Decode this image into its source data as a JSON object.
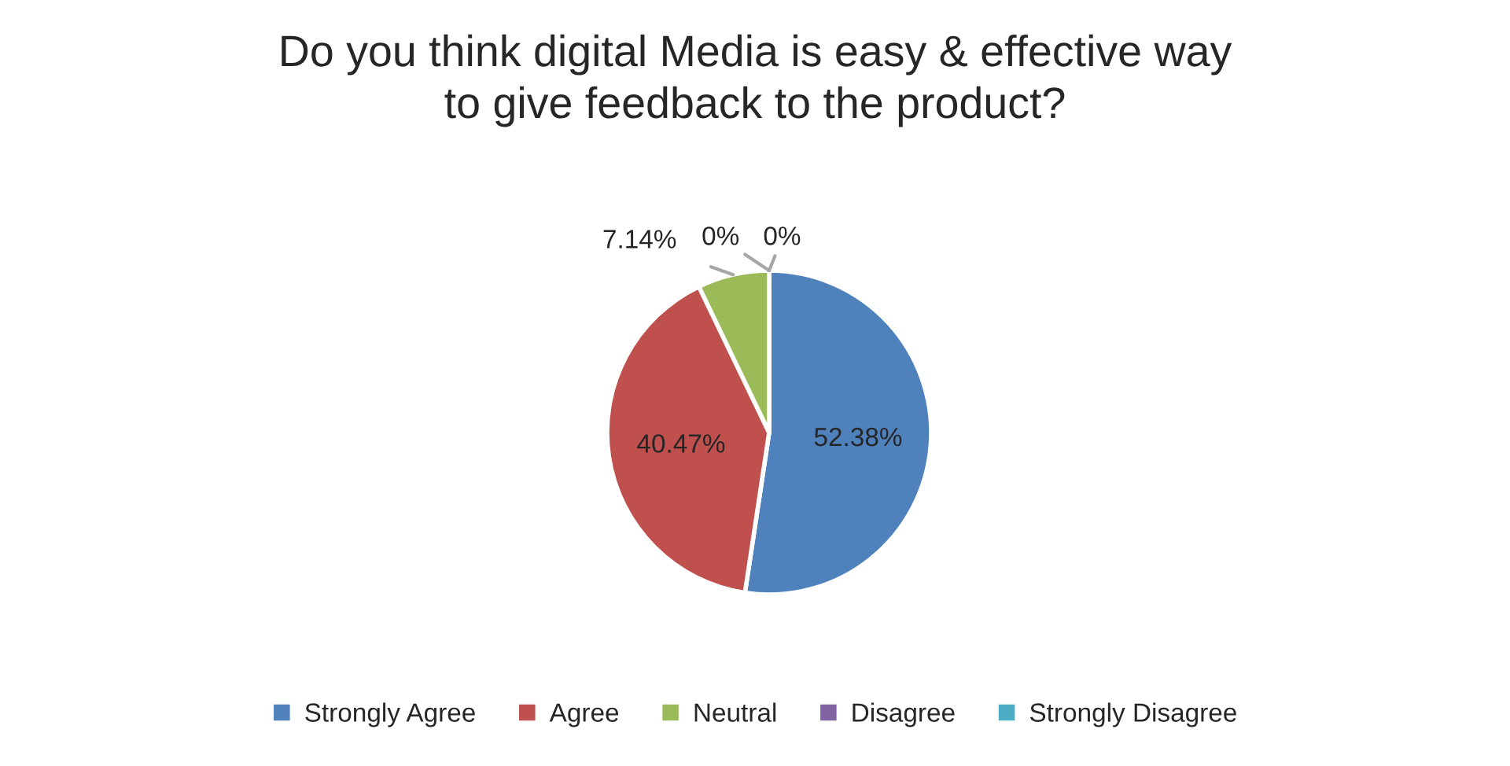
{
  "chart_data": {
    "type": "pie",
    "title": "Do you think digital Media is easy & effective way\nto give feedback to the product?",
    "categories": [
      "Strongly Agree",
      "Agree",
      "Neutral",
      "Disagree",
      "Strongly Disagree"
    ],
    "values": [
      52.38,
      40.47,
      7.14,
      0,
      0
    ],
    "colors": [
      "#4f81bd",
      "#c0504d",
      "#9bbb59",
      "#8064a2",
      "#4bacc6"
    ],
    "value_labels": [
      "52.38%",
      "40.47%",
      "7.14%",
      "0%",
      "0%"
    ],
    "legend": "bottom"
  }
}
